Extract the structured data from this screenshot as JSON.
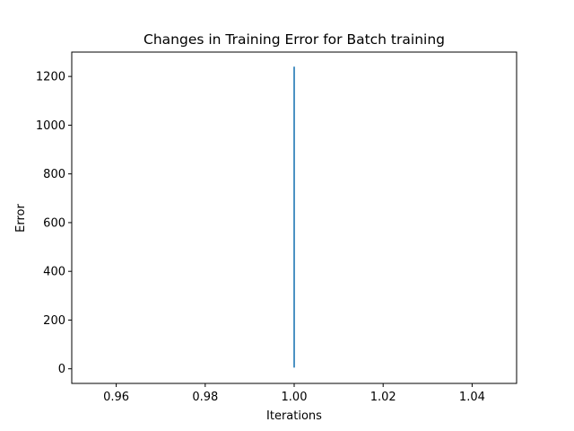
{
  "chart_data": {
    "type": "line",
    "title": "Changes in Training Error for Batch training",
    "xlabel": "Iterations",
    "ylabel": "Error",
    "xlim": [
      0.95,
      1.05
    ],
    "ylim": [
      -60,
      1300
    ],
    "x_ticks": [
      0.96,
      0.98,
      1.0,
      1.02,
      1.04
    ],
    "x_tick_labels": [
      "0.96",
      "0.98",
      "1.00",
      "1.02",
      "1.04"
    ],
    "y_ticks": [
      0,
      200,
      400,
      600,
      800,
      1000,
      1200
    ],
    "y_tick_labels": [
      "0",
      "200",
      "400",
      "600",
      "800",
      "1000",
      "1200"
    ],
    "grid": false,
    "series": [
      {
        "color": "#1f77b4",
        "x": [
          1.0,
          1.0
        ],
        "y": [
          5,
          1240
        ]
      }
    ]
  }
}
